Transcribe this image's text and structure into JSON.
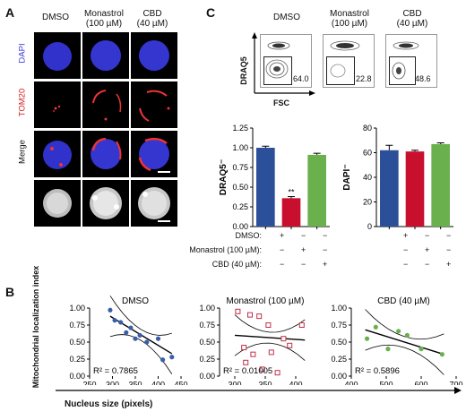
{
  "panelA": {
    "letter": "A",
    "columns": [
      "DMSO",
      "Monastrol\n(100 µM)",
      "CBD\n(40 µM)"
    ],
    "rows": [
      "DAPI",
      "TOM20",
      "Merge",
      ""
    ],
    "row_colors": {
      "DAPI": "#3b3bd6",
      "TOM20": "#d62020",
      "Merge": "#111111"
    }
  },
  "panelB": {
    "letter": "B",
    "ylabel": "Mitochondrial localization index",
    "xlabel": "Nucleus size (pixels)"
  },
  "panelC": {
    "letter": "C",
    "flow_columns": [
      "DMSO",
      "Monastrol\n(100 µM)",
      "CBD\n(40 µM)"
    ],
    "flow_ylabel": "DRAQ5",
    "flow_xlabel": "FSC",
    "gate_values": [
      "64.0",
      "22.8",
      "48.6"
    ],
    "treatment_rows": [
      {
        "label": "DMSO:",
        "signs": [
          "+",
          "−",
          "−"
        ]
      },
      {
        "label": "Monastrol (100 µM):",
        "signs": [
          "−",
          "+",
          "−"
        ]
      },
      {
        "label": "CBD (40 µM):",
        "signs": [
          "−",
          "−",
          "+"
        ]
      }
    ]
  },
  "colors": {
    "dmso": "#2c4f9a",
    "monastrol": "#c8102e",
    "cbd": "#6ab04c",
    "scatter_blue": "#3a5fa8",
    "scatter_red": "#c0304a",
    "scatter_green": "#6ab04c"
  },
  "chart_data": [
    {
      "type": "bar",
      "ylabel": "DRAQ5⁻",
      "categories": [
        "DMSO",
        "Monastrol (100 µM)",
        "CBD (40 µM)"
      ],
      "values": [
        1.0,
        0.36,
        0.91
      ],
      "errors": [
        0.02,
        0.02,
        0.02
      ],
      "annotations": [
        "",
        "**",
        ""
      ],
      "ylim": [
        0,
        1.25
      ],
      "yticks": [
        "0.00",
        "0.25",
        "0.50",
        "0.75",
        "1.00",
        "1.25"
      ]
    },
    {
      "type": "bar",
      "ylabel": "DAPI⁻",
      "categories": [
        "DMSO",
        "Monastrol (100 µM)",
        "CBD (40 µM)"
      ],
      "values": [
        62,
        61,
        67
      ],
      "errors": [
        4,
        1,
        1
      ],
      "ylim": [
        0,
        80
      ],
      "yticks": [
        "0",
        "20",
        "40",
        "60",
        "80"
      ]
    },
    {
      "type": "scatter",
      "title": "DMSO",
      "x": [
        295,
        305,
        318,
        330,
        340,
        350,
        360,
        375,
        400,
        410,
        430
      ],
      "y": [
        0.97,
        0.82,
        0.79,
        0.64,
        0.71,
        0.55,
        0.6,
        0.5,
        0.55,
        0.24,
        0.28
      ],
      "annotation": "R² = 0.7865",
      "xlim": [
        250,
        450
      ],
      "ylim": [
        0,
        1.0
      ],
      "xticks": [
        "250",
        "300",
        "350",
        "400",
        "450"
      ],
      "yticks": [
        "0.00",
        "0.25",
        "0.50",
        "0.75",
        "1.00"
      ],
      "fit": [
        [
          295,
          0.88
        ],
        [
          430,
          0.33
        ]
      ]
    },
    {
      "type": "scatter",
      "title": "Monastrol (100 µM)",
      "x": [
        305,
        315,
        318,
        325,
        330,
        340,
        345,
        355,
        360,
        370,
        380,
        390,
        410
      ],
      "y": [
        0.95,
        0.42,
        0.2,
        0.9,
        0.32,
        0.88,
        0.1,
        0.75,
        0.35,
        0.05,
        0.55,
        0.45,
        0.75
      ],
      "annotation": "R² = 0.01005",
      "xlim": [
        275,
        425
      ],
      "ylim": [
        0,
        1.0
      ],
      "xticks": [
        "300",
        "350",
        "400"
      ],
      "yticks": [
        "0.00",
        "0.25",
        "0.50",
        "0.75",
        "1.00"
      ],
      "fit": [
        [
          300,
          0.6
        ],
        [
          415,
          0.53
        ]
      ]
    },
    {
      "type": "scatter",
      "title": "CBD (40 µM)",
      "x": [
        445,
        470,
        505,
        535,
        560,
        600,
        660
      ],
      "y": [
        0.55,
        0.72,
        0.4,
        0.66,
        0.6,
        0.4,
        0.32
      ],
      "annotation": "R² = 0.5896",
      "xlim": [
        400,
        700
      ],
      "ylim": [
        0,
        1.0
      ],
      "xticks": [
        "400",
        "500",
        "600",
        "700"
      ],
      "yticks": [
        "0.00",
        "0.25",
        "0.50",
        "0.75",
        "1.00"
      ],
      "fit": [
        [
          440,
          0.68
        ],
        [
          665,
          0.32
        ]
      ]
    }
  ]
}
